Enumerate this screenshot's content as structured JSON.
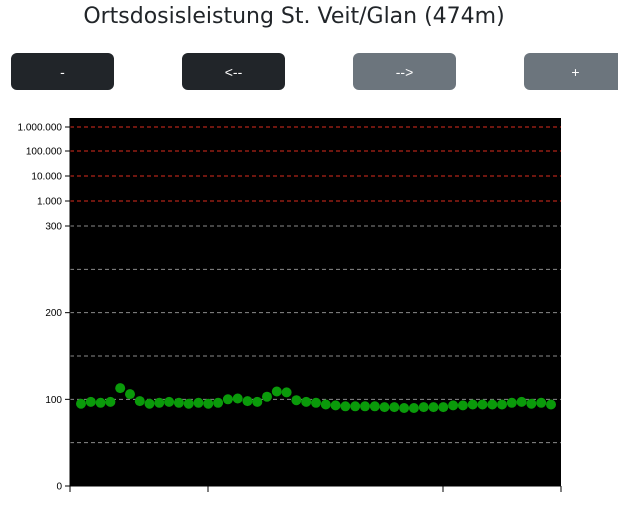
{
  "page": {
    "title": "Ortsdosisleistung St. Veit/Glan (474m)"
  },
  "buttons": [
    {
      "label": "-"
    },
    {
      "label": "<--"
    },
    {
      "label": "-->"
    },
    {
      "label": "+"
    }
  ],
  "colors": {
    "plot_background": "#000000",
    "point": "#0a9a0a",
    "alert_lines": "#b02418",
    "grid_lines": "#8a8a8a",
    "button_dark": "#212529",
    "button_gray": "#6c757d"
  },
  "chart_data": {
    "type": "scatter",
    "title": "",
    "xlabel": "",
    "ylabel": "",
    "y_scale": "piecewise",
    "y_ticks": [
      "0",
      "100",
      "200",
      "300",
      "1.000",
      "10.000",
      "100.000",
      "1.000.000"
    ],
    "y_tick_values": [
      0,
      100,
      200,
      300,
      1000,
      10000,
      100000,
      1000000
    ],
    "alert_lines": [
      1000,
      10000,
      100000,
      1000000
    ],
    "grid_lines": [
      50,
      100,
      150,
      200,
      250,
      300
    ],
    "grid": true,
    "x_tick_count": 4,
    "values": [
      95,
      97,
      96,
      97,
      113,
      106,
      98,
      95,
      96,
      97,
      96,
      95,
      96,
      95,
      96,
      100,
      101,
      98,
      97,
      103,
      109,
      108,
      99,
      97,
      96,
      94,
      93,
      92,
      92,
      92,
      92,
      91,
      91,
      90,
      90,
      91,
      91,
      91,
      93,
      93,
      94,
      94,
      94,
      94,
      96,
      97,
      95,
      96,
      94
    ]
  }
}
